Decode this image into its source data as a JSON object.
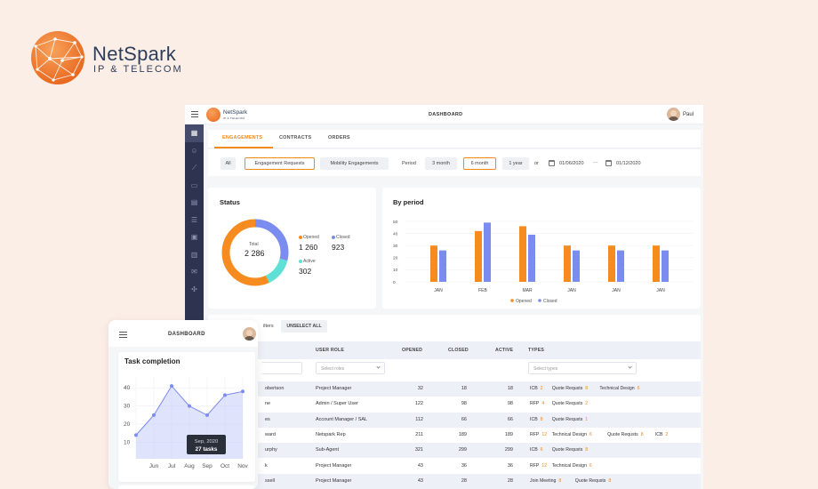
{
  "brand": {
    "name": "NetSpark",
    "sub": "IP & TELECOM",
    "mini_name": "NetSpark",
    "mini_sub": "IP & TELECOM"
  },
  "header": {
    "title": "DASHBOARD",
    "user": "Paul"
  },
  "sidebar": {
    "icons": [
      "grid-icon",
      "users-icon",
      "chart-icon",
      "document-icon",
      "receipt-icon",
      "sliders-icon",
      "calendar-icon",
      "invoice-icon",
      "mail-icon",
      "network-icon"
    ]
  },
  "tabs": [
    "ENGAGEMENTS",
    "CONTRACTS",
    "ORDERS"
  ],
  "filters": {
    "scope": [
      "All",
      "Engagement Requests",
      "Mobility Engagements"
    ],
    "period_label": "Period",
    "periods": [
      "3 month",
      "6 month",
      "1 year"
    ],
    "or": "or",
    "date_from": "01/06/2020",
    "date_sep": "—",
    "date_to": "01/12/2020"
  },
  "status": {
    "title": "Status",
    "total_label": "Total",
    "total": "2 286",
    "opened_label": "Opened",
    "opened": "1 260",
    "closed_label": "Closed",
    "closed": "923",
    "active_label": "Active",
    "active": "302"
  },
  "colors": {
    "orange": "#f68b1f",
    "blue": "#7b8cf0",
    "teal": "#5ee0d4"
  },
  "chart_data": {
    "type": "bar",
    "title": "By period",
    "categories": [
      "JAN",
      "FEB",
      "MAR",
      "JAN",
      "JAN",
      "JAN"
    ],
    "series": [
      {
        "name": "Opened",
        "values": [
          30,
          42,
          46,
          30,
          30,
          30
        ]
      },
      {
        "name": "Closed",
        "values": [
          26,
          49,
          39,
          26,
          26,
          26
        ]
      }
    ],
    "yticks": [
      "50",
      "40",
      "30",
      "20",
      "10",
      "0"
    ],
    "ylim": [
      0,
      50
    ],
    "legend": "bottom",
    "grid": true
  },
  "table": {
    "partial_button": "ilters",
    "unselect_button": "UNSELECT ALL",
    "columns": [
      "USER ROLE",
      "OPENED",
      "CLOSED",
      "ACTIVE",
      "TYPES"
    ],
    "roles_placeholder": "Select roles",
    "types_placeholder": "Select types",
    "rows": [
      {
        "name": "obertson",
        "role": "Project Manager",
        "opened": "32",
        "closed": "18",
        "active": "18",
        "types": [
          [
            "ICB",
            "2"
          ],
          [
            "Quote Requsts",
            "8"
          ],
          [
            "Technical Design",
            "6"
          ]
        ]
      },
      {
        "name": "ne",
        "role": "Admin / Super User",
        "opened": "122",
        "closed": "98",
        "active": "98",
        "types": [
          [
            "RFP",
            "4"
          ],
          [
            "Quote Requsts",
            "2"
          ]
        ]
      },
      {
        "name": "es",
        "role": "Account Manager / SAL",
        "opened": "112",
        "closed": "66",
        "active": "66",
        "types": [
          [
            "ICB",
            "8"
          ],
          [
            "Quote Requsts",
            "1"
          ]
        ]
      },
      {
        "name": "ward",
        "role": "Netspark Rep",
        "opened": "211",
        "closed": "189",
        "active": "189",
        "types": [
          [
            "RFP",
            "12"
          ],
          [
            "Technical Design",
            "6"
          ],
          [
            "Quote Requsts",
            "8"
          ],
          [
            "ICB",
            "2"
          ]
        ]
      },
      {
        "name": "urphy",
        "role": "Sub-Agent",
        "opened": "321",
        "closed": "299",
        "active": "299",
        "types": [
          [
            "ICB",
            "6"
          ],
          [
            "Quote Requsts",
            "8"
          ]
        ]
      },
      {
        "name": "k",
        "role": "Project Manager",
        "opened": "43",
        "closed": "36",
        "active": "36",
        "types": [
          [
            "RFP",
            "12"
          ],
          [
            "Technical Design",
            "6"
          ]
        ]
      },
      {
        "name": "ssell",
        "role": "Project Manager",
        "opened": "43",
        "closed": "28",
        "active": "28",
        "types": [
          [
            "Join Meeting",
            "8"
          ],
          [
            "Quote Requsts",
            "8"
          ]
        ]
      }
    ]
  },
  "mobile": {
    "title": "DASHBOARD",
    "card_title": "Task completion",
    "yticks": [
      "40",
      "30",
      "20",
      "10"
    ],
    "xticks": [
      "Jun",
      "Jul",
      "Aug",
      "Sep",
      "Oct",
      "Nov"
    ],
    "tooltip_date": "Sep, 2020",
    "tooltip_value": "27 tasks",
    "points": [
      14,
      25,
      41,
      30,
      25,
      36,
      38
    ]
  }
}
